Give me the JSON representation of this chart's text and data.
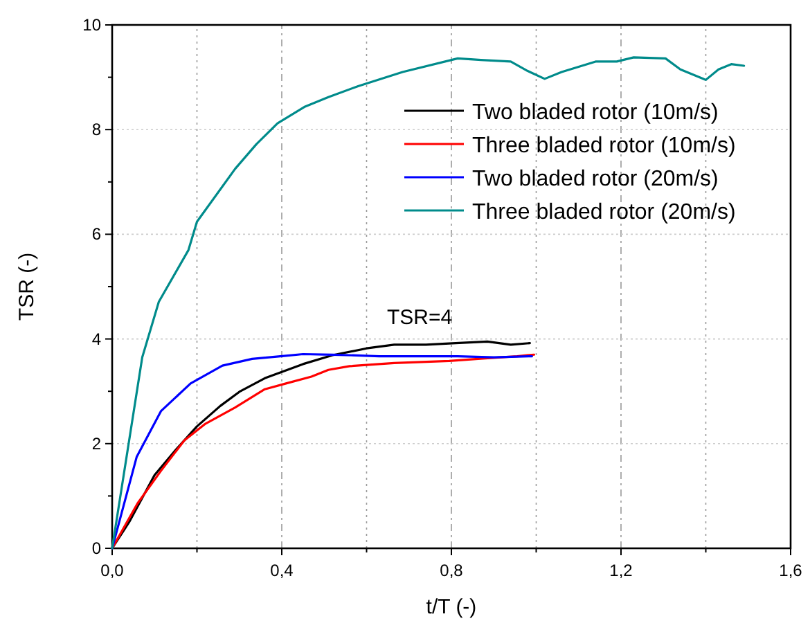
{
  "chart_data": {
    "type": "line",
    "xlabel": "t/T (-)",
    "ylabel": "TSR (-)",
    "xlim": [
      0,
      1.6
    ],
    "ylim": [
      0,
      10
    ],
    "xticks": [
      {
        "value": 0,
        "label": "0,0"
      },
      {
        "value": 0.2,
        "label": null
      },
      {
        "value": 0.4,
        "label": "0,4"
      },
      {
        "value": 0.6,
        "label": null
      },
      {
        "value": 0.8,
        "label": "0,8"
      },
      {
        "value": 1.0,
        "label": null
      },
      {
        "value": 1.2,
        "label": "1,2"
      },
      {
        "value": 1.4,
        "label": null
      },
      {
        "value": 1.6,
        "label": "1,6"
      }
    ],
    "yticks": [
      0,
      {
        "value": 1,
        "label": null
      },
      2,
      {
        "value": 3,
        "label": null
      },
      4,
      {
        "value": 5,
        "label": null
      },
      6,
      {
        "value": 7,
        "label": null
      },
      8,
      {
        "value": 9,
        "label": null
      },
      10
    ],
    "grid": true,
    "legend": "top right",
    "line_style": "solid",
    "marker": "none",
    "annotations": [
      "TSR=4"
    ],
    "series": [
      {
        "name": "Two bladed rotor (10m/s)",
        "color": "#000000",
        "x": [
          0,
          0.04,
          0.1,
          0.15,
          0.2,
          0.255,
          0.3,
          0.36,
          0.4,
          0.45,
          0.52,
          0.6,
          0.665,
          0.74,
          0.81,
          0.885,
          0.94,
          0.985
        ],
        "values": [
          0,
          0.5,
          1.4,
          1.88,
          2.33,
          2.72,
          2.99,
          3.25,
          3.37,
          3.52,
          3.69,
          3.82,
          3.89,
          3.89,
          3.92,
          3.95,
          3.89,
          3.92
        ]
      },
      {
        "name": "Three bladed rotor (10m/s)",
        "color": "#ff0000",
        "x": [
          0,
          0.06,
          0.115,
          0.17,
          0.22,
          0.29,
          0.36,
          0.41,
          0.47,
          0.51,
          0.56,
          0.665,
          0.795,
          0.88,
          0.955,
          0.995
        ],
        "values": [
          0,
          0.86,
          1.48,
          2.06,
          2.38,
          2.69,
          3.04,
          3.15,
          3.28,
          3.41,
          3.48,
          3.54,
          3.58,
          3.63,
          3.67,
          3.7
        ]
      },
      {
        "name": "Two bladed rotor (20m/s)",
        "color": "#0000ff",
        "x": [
          0,
          0.058,
          0.115,
          0.185,
          0.26,
          0.33,
          0.41,
          0.45,
          0.52,
          0.63,
          0.815,
          0.9,
          0.99
        ],
        "values": [
          0,
          1.75,
          2.62,
          3.15,
          3.49,
          3.62,
          3.68,
          3.71,
          3.7,
          3.67,
          3.67,
          3.65,
          3.67
        ]
      },
      {
        "name": "Three bladed rotor (20m/s)",
        "color": "#008b8b",
        "x": [
          0,
          0.071,
          0.11,
          0.18,
          0.2,
          0.29,
          0.34,
          0.39,
          0.455,
          0.51,
          0.58,
          0.685,
          0.815,
          0.87,
          0.94,
          0.98,
          1.02,
          1.06,
          1.1,
          1.14,
          1.19,
          1.23,
          1.305,
          1.34,
          1.4,
          1.43,
          1.46,
          1.49
        ],
        "values": [
          0,
          3.65,
          4.71,
          5.7,
          6.24,
          7.25,
          7.72,
          8.12,
          8.44,
          8.62,
          8.83,
          9.1,
          9.36,
          9.33,
          9.3,
          9.12,
          8.97,
          9.1,
          9.2,
          9.3,
          9.3,
          9.38,
          9.36,
          9.15,
          8.95,
          9.15,
          9.25,
          9.22
        ]
      }
    ]
  }
}
